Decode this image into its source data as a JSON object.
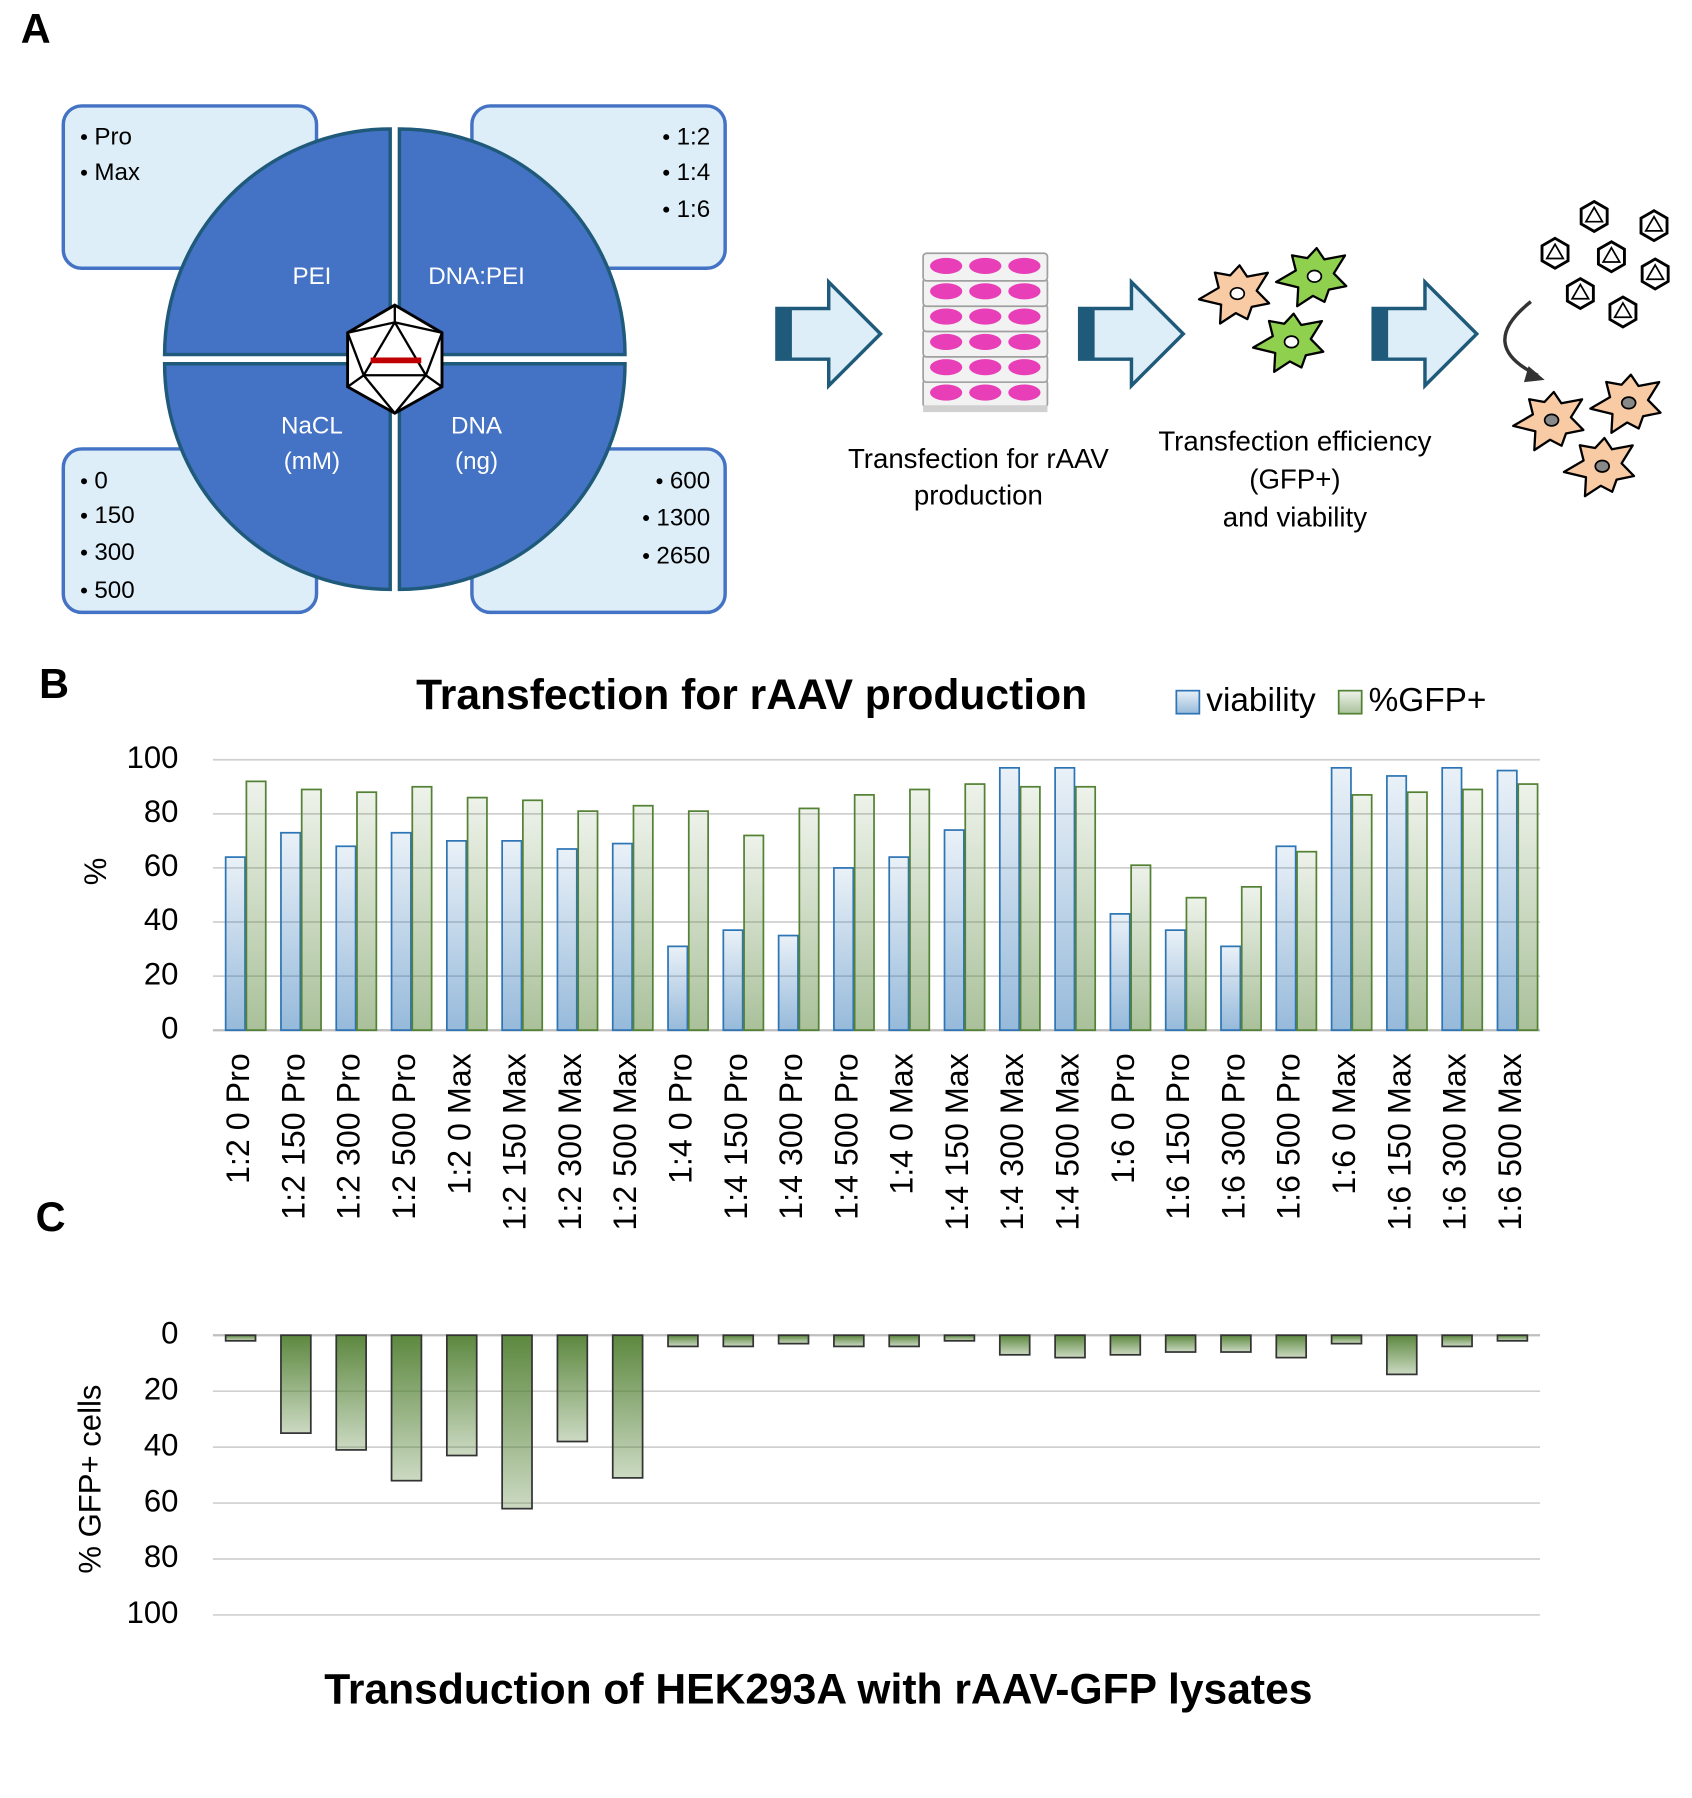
{
  "panel_labels": [
    "A",
    "B",
    "C"
  ],
  "diagram": {
    "quadrants": [
      {
        "label": [
          "PEI"
        ]
      },
      {
        "label": [
          "DNA:PEI"
        ]
      },
      {
        "label": [
          "NaCL",
          "(mM)"
        ]
      },
      {
        "label": [
          "DNA",
          "(ng)"
        ]
      }
    ],
    "option_boxes": [
      [
        "Pro",
        "Max"
      ],
      [
        "1:2",
        "1:4",
        "1:6"
      ],
      [
        "0",
        "150",
        "300",
        "500"
      ],
      [
        "600",
        "1300",
        "2650"
      ]
    ],
    "steps": [
      [
        "Transfection for rAAV",
        "production"
      ],
      [
        "Transfection efficiency",
        "(GFP+)",
        "and viability"
      ]
    ]
  },
  "chart_data": [
    {
      "type": "bar",
      "title": "Transfection for rAAV production",
      "y_label": "%",
      "categories": [
        "1:2 0 Pro",
        "1:2 150 Pro",
        "1:2 300 Pro",
        "1:2 500 Pro",
        "1:2 0 Max",
        "1:2 150 Max",
        "1:2 300 Max",
        "1:2 500 Max",
        "1:4 0 Pro",
        "1:4 150 Pro",
        "1:4 300 Pro",
        "1:4 500 Pro",
        "1:4 0 Max",
        "1:4 150 Max",
        "1:4 300 Max",
        "1:4 500 Max",
        "1:6 0 Pro",
        "1:6 150 Pro",
        "1:6 300 Pro",
        "1:6 500 Pro",
        "1:6 0 Max",
        "1:6 150 Max",
        "1:6 300 Max",
        "1:6 500 Max"
      ],
      "series": [
        {
          "name": "viability",
          "color": "#2e75b6",
          "values": [
            64,
            73,
            68,
            73,
            70,
            70,
            67,
            69,
            31,
            37,
            35,
            60,
            64,
            74,
            97,
            97,
            43,
            37,
            31,
            68,
            97,
            94,
            97,
            96
          ]
        },
        {
          "name": "%GFP+",
          "color": "#548235",
          "values": [
            92,
            89,
            88,
            90,
            86,
            85,
            81,
            83,
            81,
            72,
            82,
            87,
            89,
            91,
            90,
            90,
            61,
            49,
            53,
            66,
            87,
            88,
            89,
            91
          ]
        }
      ],
      "ylim": [
        0,
        100
      ],
      "yticks": [
        0,
        20,
        40,
        60,
        80,
        100
      ],
      "grid": true,
      "legend": "top-right"
    },
    {
      "type": "bar",
      "title": "Transduction of HEK293A with rAAV-GFP lysates",
      "y_label": "% GFP+ cells",
      "values": [
        2,
        35,
        41,
        52,
        43,
        62,
        38,
        51,
        4,
        4,
        3,
        4,
        4,
        2,
        7,
        8,
        7,
        6,
        6,
        8,
        3,
        14,
        4,
        2
      ],
      "color": "#548235",
      "ylim": [
        0,
        100
      ],
      "yticks": [
        0,
        20,
        40,
        60,
        80,
        100
      ],
      "grid": true,
      "y_inverted": true
    }
  ]
}
